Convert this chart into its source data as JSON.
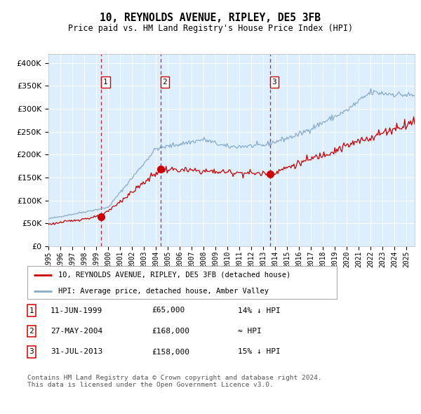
{
  "title": "10, REYNOLDS AVENUE, RIPLEY, DE5 3FB",
  "subtitle": "Price paid vs. HM Land Registry's House Price Index (HPI)",
  "sale_points": [
    {
      "label": "1",
      "date": "11-JUN-1999",
      "price": 65000,
      "hpi_note": "14% ↓ HPI",
      "x_year": 1999.44
    },
    {
      "label": "2",
      "date": "27-MAY-2004",
      "price": 168000,
      "hpi_note": "≈ HPI",
      "x_year": 2004.4
    },
    {
      "label": "3",
      "date": "31-JUL-2013",
      "price": 158000,
      "hpi_note": "15% ↓ HPI",
      "x_year": 2013.58
    }
  ],
  "legend_entries": [
    "10, REYNOLDS AVENUE, RIPLEY, DE5 3FB (detached house)",
    "HPI: Average price, detached house, Amber Valley"
  ],
  "footer": "Contains HM Land Registry data © Crown copyright and database right 2024.\nThis data is licensed under the Open Government Licence v3.0.",
  "red_color": "#cc0000",
  "blue_color": "#88aacc",
  "background_color": "#ddeeff",
  "ylim": [
    0,
    420000
  ],
  "yticks": [
    0,
    50000,
    100000,
    150000,
    200000,
    250000,
    300000,
    350000,
    400000
  ],
  "xlim_start": 1995.0,
  "xlim_end": 2025.7
}
